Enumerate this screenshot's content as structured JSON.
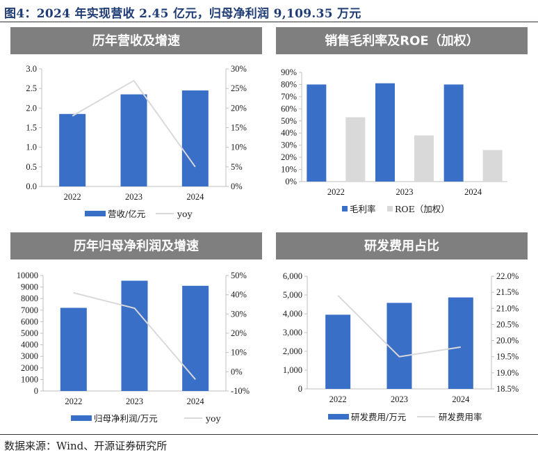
{
  "figure": {
    "title": "图4：2024 年实现营收 2.45 亿元，归母净利润 9,109.35 万元",
    "source": "数据来源：Wind、开源证券研究所"
  },
  "colors": {
    "bar_primary": "#3a6fc7",
    "bar_secondary": "#d9d9d9",
    "line": "#d9d9d9",
    "banner": "#7f7f7f",
    "title": "#1f3c74"
  },
  "chart_data": [
    {
      "type": "bar",
      "title": "历年营收及增速",
      "categories": [
        "2022",
        "2023",
        "2024"
      ],
      "series": [
        {
          "name": "营收/亿元",
          "kind": "bar",
          "axis": "left",
          "values": [
            1.85,
            2.35,
            2.45
          ]
        },
        {
          "name": "yoy",
          "kind": "line",
          "axis": "right",
          "values": [
            0.18,
            0.27,
            0.05
          ]
        }
      ],
      "ylim": [
        0,
        3.0
      ],
      "yticks": [
        "0.0",
        "0.5",
        "1.0",
        "1.5",
        "2.0",
        "2.5",
        "3.0"
      ],
      "y2lim": [
        0,
        0.3
      ],
      "y2ticks": [
        "0%",
        "5%",
        "10%",
        "15%",
        "20%",
        "25%",
        "30%"
      ],
      "grid": false,
      "legend": "bottom"
    },
    {
      "type": "bar",
      "title": "销售毛利率及ROE（加权）",
      "categories": [
        "2022",
        "2023",
        "2024"
      ],
      "series": [
        {
          "name": "毛利率",
          "kind": "bar",
          "axis": "left",
          "values": [
            0.8,
            0.81,
            0.8
          ]
        },
        {
          "name": "ROE（加权）",
          "kind": "bar",
          "axis": "left",
          "values": [
            0.53,
            0.38,
            0.26
          ]
        }
      ],
      "ylim": [
        0,
        0.9
      ],
      "yticks": [
        "0%",
        "10%",
        "20%",
        "30%",
        "40%",
        "50%",
        "60%",
        "70%",
        "80%",
        "90%"
      ],
      "grid": false,
      "legend": "bottom"
    },
    {
      "type": "bar",
      "title": "历年归母净利润及增速",
      "categories": [
        "2022",
        "2023",
        "2024"
      ],
      "series": [
        {
          "name": "归母净利润/万元",
          "kind": "bar",
          "axis": "left",
          "values": [
            7200,
            9550,
            9109.35
          ]
        },
        {
          "name": "yoy",
          "kind": "line",
          "axis": "right",
          "values": [
            0.41,
            0.33,
            -0.04
          ]
        }
      ],
      "ylim": [
        0,
        10000
      ],
      "yticks": [
        "0",
        "1000",
        "2000",
        "3000",
        "4000",
        "5000",
        "6000",
        "7000",
        "8000",
        "9000",
        "10000"
      ],
      "y2lim": [
        -0.1,
        0.5
      ],
      "y2ticks": [
        "-10%",
        "0%",
        "10%",
        "20%",
        "30%",
        "40%",
        "50%"
      ],
      "grid": false,
      "legend": "bottom"
    },
    {
      "type": "bar",
      "title": "研发费用占比",
      "categories": [
        "2022",
        "2023",
        "2024"
      ],
      "series": [
        {
          "name": "研发费用/万元",
          "kind": "bar",
          "axis": "left",
          "values": [
            3950,
            4580,
            4870
          ]
        },
        {
          "name": "研发费用率",
          "kind": "line",
          "axis": "right",
          "values": [
            0.214,
            0.195,
            0.198
          ]
        }
      ],
      "ylim": [
        0,
        6000
      ],
      "yticks": [
        "0",
        "1,000",
        "2,000",
        "3,000",
        "4,000",
        "5,000",
        "6,000"
      ],
      "y2lim": [
        0.185,
        0.22
      ],
      "y2ticks": [
        "18.5%",
        "19.0%",
        "19.5%",
        "20.0%",
        "20.5%",
        "21.0%",
        "21.5%",
        "22.0%"
      ],
      "grid": false,
      "legend": "bottom"
    }
  ]
}
